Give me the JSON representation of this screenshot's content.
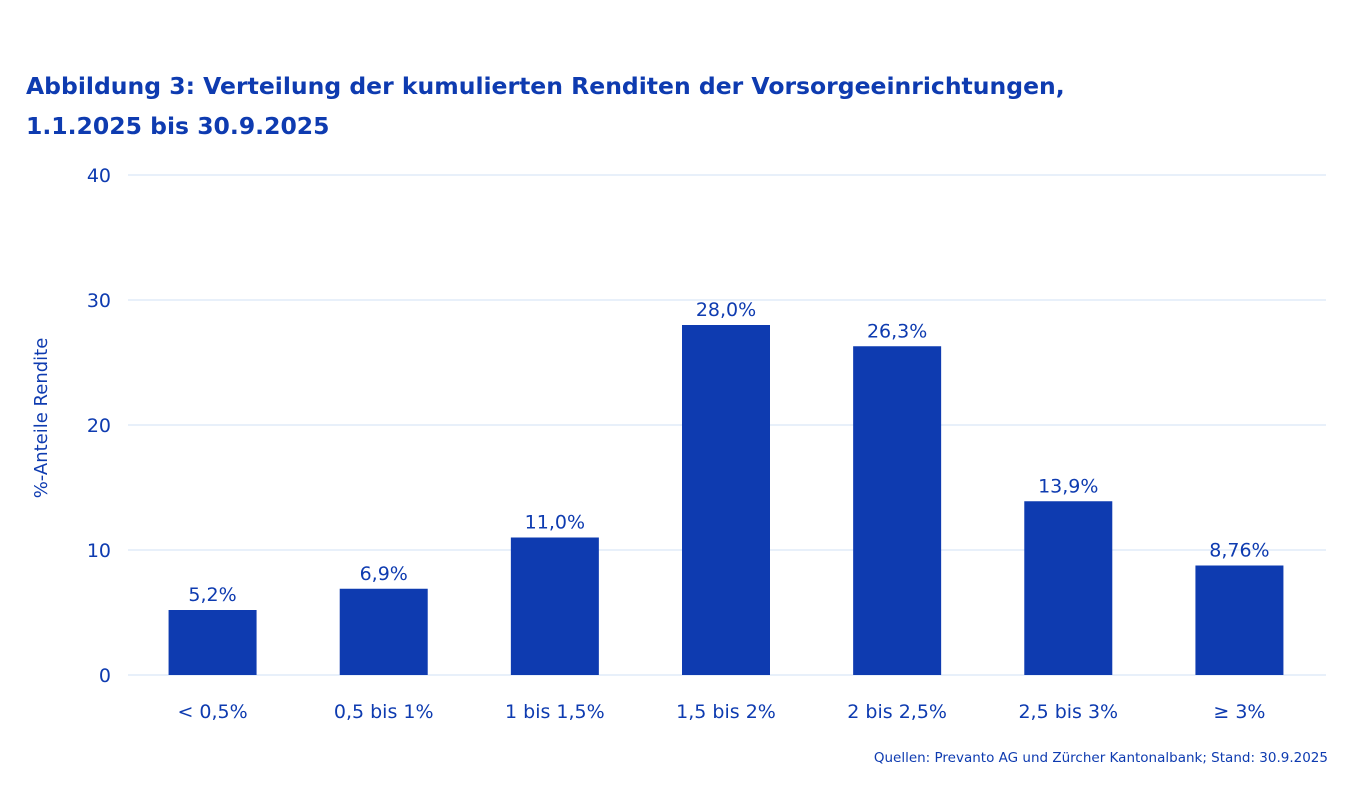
{
  "chart_data": {
    "type": "bar",
    "title_lines": [
      "Abbildung 3: Verteilung der kumulierten Renditen der Vorsorgeeinrichtungen,",
      "1.1.2025 bis 30.9.2025"
    ],
    "xlabel": "",
    "ylabel": "%-Anteile Rendite",
    "ylim": [
      0,
      40
    ],
    "yticks": [
      0,
      10,
      20,
      30,
      40
    ],
    "grid": true,
    "legend": "none",
    "categories": [
      "< 0,5%",
      "0,5 bis 1%",
      "1 bis 1,5%",
      "1,5 bis 2%",
      "2 bis 2,5%",
      "2,5 bis 3%",
      "≥ 3%"
    ],
    "values": [
      5.2,
      6.9,
      11.0,
      28.0,
      26.3,
      13.9,
      8.76
    ],
    "data_labels": [
      "5,2%",
      "6,9%",
      "11,0%",
      "28,0%",
      "26,3%",
      "13,9%",
      "8,76%"
    ],
    "bar_color": "#0e3bb0",
    "grid_color": "#dbe8f7",
    "source": "Quellen: Prevanto AG und Zürcher Kantonalbank; Stand: 30.9.2025"
  }
}
